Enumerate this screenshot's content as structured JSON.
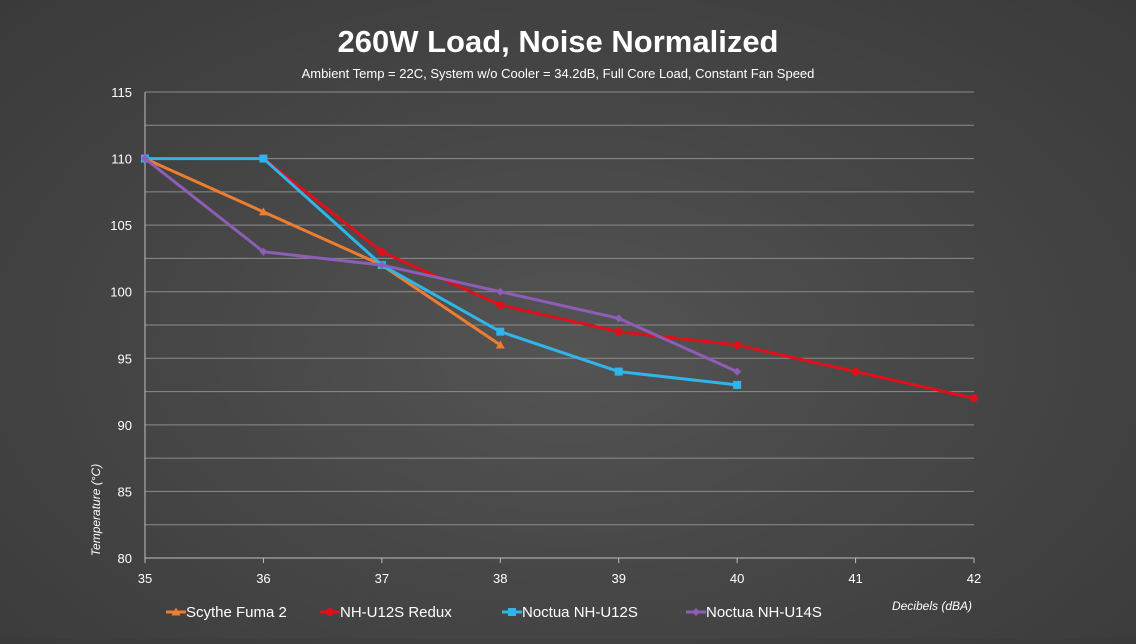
{
  "chart_data": {
    "type": "line",
    "title": "260W Load, Noise Normalized",
    "subtitle": "Ambient Temp = 22C, System w/o Cooler = 34.2dB, Full Core Load, Constant Fan Speed",
    "xlabel": "Decibels (dBA)",
    "ylabel": "Temperature  (°C)",
    "xlim": [
      35,
      42
    ],
    "ylim": [
      80,
      115
    ],
    "x_ticks": [
      35,
      36,
      37,
      38,
      39,
      40,
      41,
      42
    ],
    "y_ticks": [
      80,
      85,
      90,
      95,
      100,
      105,
      110,
      115
    ],
    "grid": true,
    "legend_position": "bottom",
    "series": [
      {
        "name": "Scythe Fuma 2",
        "color": "#ed7d31",
        "marker": "triangle",
        "x": [
          35,
          36,
          37,
          38
        ],
        "y": [
          110,
          106,
          102,
          96
        ]
      },
      {
        "name": "NH-U12S Redux",
        "color": "#e0101a",
        "marker": "circle",
        "x": [
          36,
          37,
          38,
          39,
          40,
          41,
          42
        ],
        "y": [
          110,
          103,
          99,
          97,
          96,
          94,
          92
        ]
      },
      {
        "name": "Noctua NH-U12S",
        "color": "#2fb5e8",
        "marker": "square",
        "x": [
          35,
          36,
          37,
          38,
          39,
          40
        ],
        "y": [
          110,
          110,
          102,
          97,
          94,
          93
        ]
      },
      {
        "name": "Noctua NH-U14S",
        "color": "#8e5db8",
        "marker": "diamond",
        "x": [
          35,
          36,
          37,
          38,
          39,
          40
        ],
        "y": [
          110,
          103,
          102,
          100,
          98,
          94
        ]
      }
    ]
  }
}
